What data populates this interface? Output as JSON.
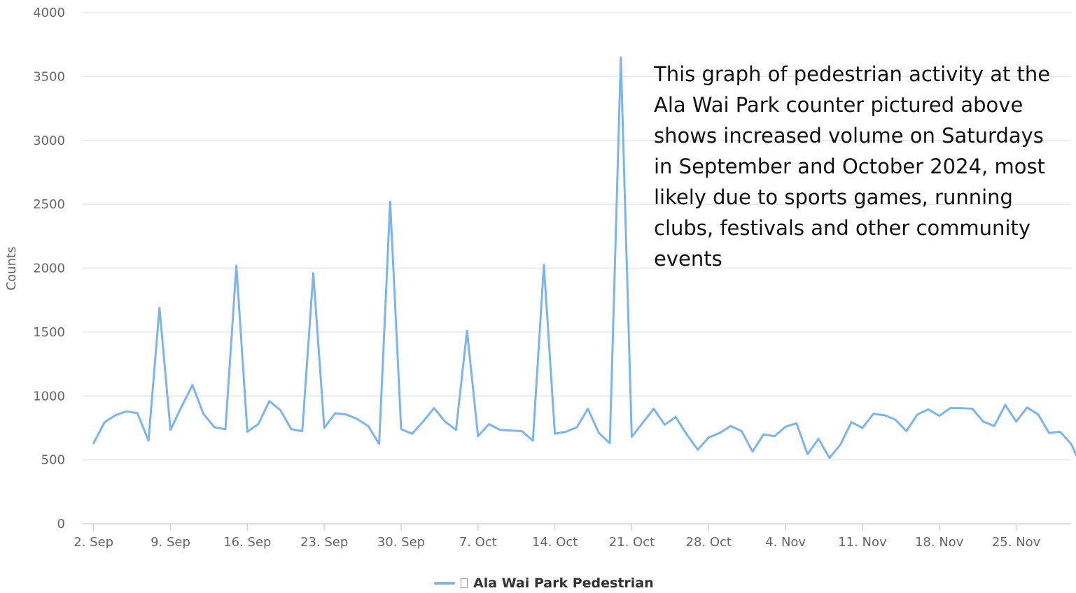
{
  "annotation": "This graph of pedestrian activity at the Ala Wai Park counter pictured above shows increased volume on Saturdays in September and October 2024, most likely due to sports games, running clubs, festivals and other community events",
  "colors": {
    "series": "#7cb5ec",
    "grid": "#e6e6e6",
    "axis": "#ccd6eb",
    "text": "#666666"
  },
  "legend": {
    "label": "Ala Wai Park Pedestrian"
  },
  "chart_data": {
    "type": "line",
    "title": "",
    "xlabel": "",
    "ylabel": "Counts",
    "ylim": [
      0,
      4000
    ],
    "yticks": [
      0,
      500,
      1000,
      1500,
      2000,
      2500,
      3000,
      3500,
      4000
    ],
    "x_range": [
      "2024-09-01",
      "2024-11-30"
    ],
    "xticks": [
      {
        "date": "2024-09-02",
        "label": "2. Sep"
      },
      {
        "date": "2024-09-09",
        "label": "9. Sep"
      },
      {
        "date": "2024-09-16",
        "label": "16. Sep"
      },
      {
        "date": "2024-09-23",
        "label": "23. Sep"
      },
      {
        "date": "2024-09-30",
        "label": "30. Sep"
      },
      {
        "date": "2024-10-07",
        "label": "7. Oct"
      },
      {
        "date": "2024-10-14",
        "label": "14. Oct"
      },
      {
        "date": "2024-10-21",
        "label": "21. Oct"
      },
      {
        "date": "2024-10-28",
        "label": "28. Oct"
      },
      {
        "date": "2024-11-04",
        "label": "4. Nov"
      },
      {
        "date": "2024-11-11",
        "label": "11. Nov"
      },
      {
        "date": "2024-11-18",
        "label": "18. Nov"
      },
      {
        "date": "2024-11-25",
        "label": "25. Nov"
      }
    ],
    "grid": true,
    "legend_position": "bottom-center",
    "series": [
      {
        "name": "Ala Wai Park Pedestrian",
        "x_start": "2024-09-02",
        "x_step_days": 1,
        "values": [
          630,
          795,
          850,
          880,
          865,
          650,
          1690,
          735,
          915,
          1085,
          860,
          755,
          740,
          2020,
          720,
          780,
          960,
          890,
          740,
          725,
          1960,
          750,
          865,
          855,
          820,
          765,
          625,
          2520,
          740,
          705,
          800,
          905,
          800,
          735,
          1510,
          685,
          780,
          735,
          730,
          725,
          650,
          2025,
          705,
          720,
          755,
          900,
          710,
          630,
          3650,
          680,
          790,
          900,
          775,
          835,
          700,
          580,
          675,
          710,
          765,
          725,
          565,
          700,
          685,
          760,
          785,
          545,
          665,
          515,
          620,
          795,
          750,
          860,
          850,
          815,
          725,
          855,
          895,
          845,
          905,
          905,
          900,
          800,
          765,
          930,
          800,
          910,
          855,
          710,
          720,
          625,
          440
        ]
      }
    ]
  }
}
